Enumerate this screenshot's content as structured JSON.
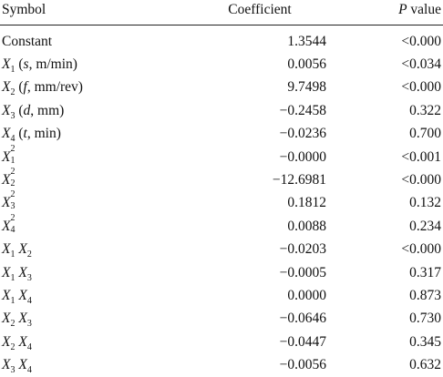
{
  "table": {
    "header": [
      "Symbol",
      "Coefficient",
      [
        "P",
        " value"
      ]
    ],
    "rows": [
      {
        "symbol": [
          "Constant"
        ],
        "coefficient": "1.3544",
        "p": "<0.000"
      },
      {
        "symbol": [
          "X",
          "1",
          " (",
          "s",
          ", m/min)"
        ],
        "coefficient": "0.0056",
        "p": "<0.034"
      },
      {
        "symbol": [
          "X",
          "2",
          " (",
          "f",
          ", mm/rev)"
        ],
        "coefficient": "9.7498",
        "p": "<0.000"
      },
      {
        "symbol": [
          "X",
          "3",
          " (",
          "d",
          ", mm)"
        ],
        "coefficient": "−0.2458",
        "p": "0.322"
      },
      {
        "symbol": [
          "X",
          "4",
          " (",
          "t",
          ", min)"
        ],
        "coefficient": "−0.0236",
        "p": "0.700"
      },
      {
        "symbol": [
          "X",
          "1",
          "2"
        ],
        "coefficient": "−0.0000",
        "p": "<0.001"
      },
      {
        "symbol": [
          "X",
          "2",
          "2"
        ],
        "coefficient": "−12.6981",
        "p": "<0.000"
      },
      {
        "symbol": [
          "X",
          "3",
          "2"
        ],
        "coefficient": "0.1812",
        "p": "0.132"
      },
      {
        "symbol": [
          "X",
          "4",
          "2"
        ],
        "coefficient": "0.0088",
        "p": "0.234"
      },
      {
        "symbol": [
          "X",
          "1",
          " ",
          "X",
          "2"
        ],
        "coefficient": "−0.0203",
        "p": "<0.000"
      },
      {
        "symbol": [
          "X",
          "1",
          " ",
          "X",
          "3"
        ],
        "coefficient": "−0.0005",
        "p": "0.317"
      },
      {
        "symbol": [
          "X",
          "1",
          " ",
          "X",
          "4"
        ],
        "coefficient": "0.0000",
        "p": "0.873"
      },
      {
        "symbol": [
          "X",
          "2",
          " ",
          "X",
          "3"
        ],
        "coefficient": "−0.0646",
        "p": "0.730"
      },
      {
        "symbol": [
          "X",
          "2",
          " ",
          "X",
          "4"
        ],
        "coefficient": "−0.0447",
        "p": "0.345"
      },
      {
        "symbol": [
          "X",
          "3",
          " ",
          "X",
          "4"
        ],
        "coefficient": "−0.0056",
        "p": "0.632"
      }
    ]
  }
}
